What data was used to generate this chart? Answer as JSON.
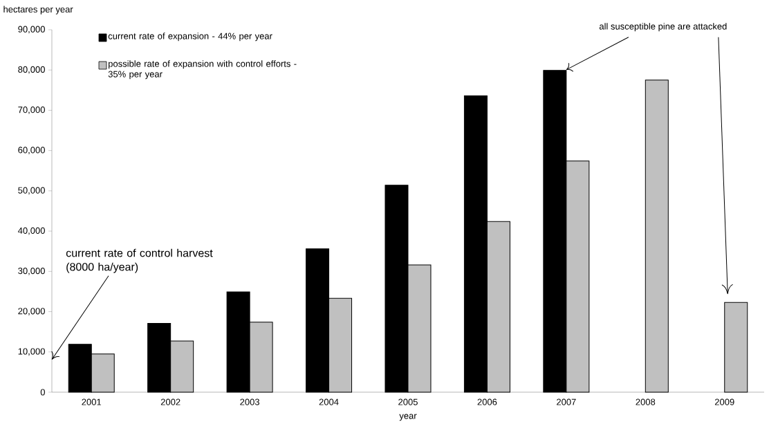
{
  "chart_data": {
    "type": "bar",
    "xlabel": "year",
    "ylabel": "hectares per year",
    "categories": [
      "2001",
      "2002",
      "2003",
      "2004",
      "2005",
      "2006",
      "2007",
      "2008",
      "2009"
    ],
    "series": [
      {
        "name": "current rate of expansion - 44% per year",
        "color": "#000000",
        "values": [
          11900,
          17100,
          24900,
          35600,
          51400,
          73600,
          79900,
          null,
          null
        ]
      },
      {
        "name": "possible rate of expansion with control efforts - 35% per year",
        "color": "#c0c0c0",
        "values": [
          9500,
          12700,
          17400,
          23300,
          31600,
          42400,
          57400,
          77500,
          22300
        ]
      }
    ],
    "ylim": [
      0,
      90000
    ],
    "yticks": [
      0,
      {
        "value": 10000,
        "label": "10,000"
      },
      {
        "value": 20000,
        "label": "20,000"
      },
      {
        "value": 30000,
        "label": "30,000"
      },
      {
        "value": 40000,
        "label": "40,000"
      },
      {
        "value": 50000,
        "label": "50,000"
      },
      {
        "value": 60000,
        "label": "60,000"
      },
      {
        "value": 70000,
        "label": "70,000"
      },
      {
        "value": 80000,
        "label": "80,000"
      },
      {
        "value": 90000,
        "label": "90,000"
      }
    ],
    "grid": false,
    "legend": "top left",
    "annotations": [
      "current rate of control harvest (8000 ha/year)",
      {
        "text": "all susceptible pine are attacked",
        "x": "2007",
        "y": 79900
      }
    ]
  }
}
